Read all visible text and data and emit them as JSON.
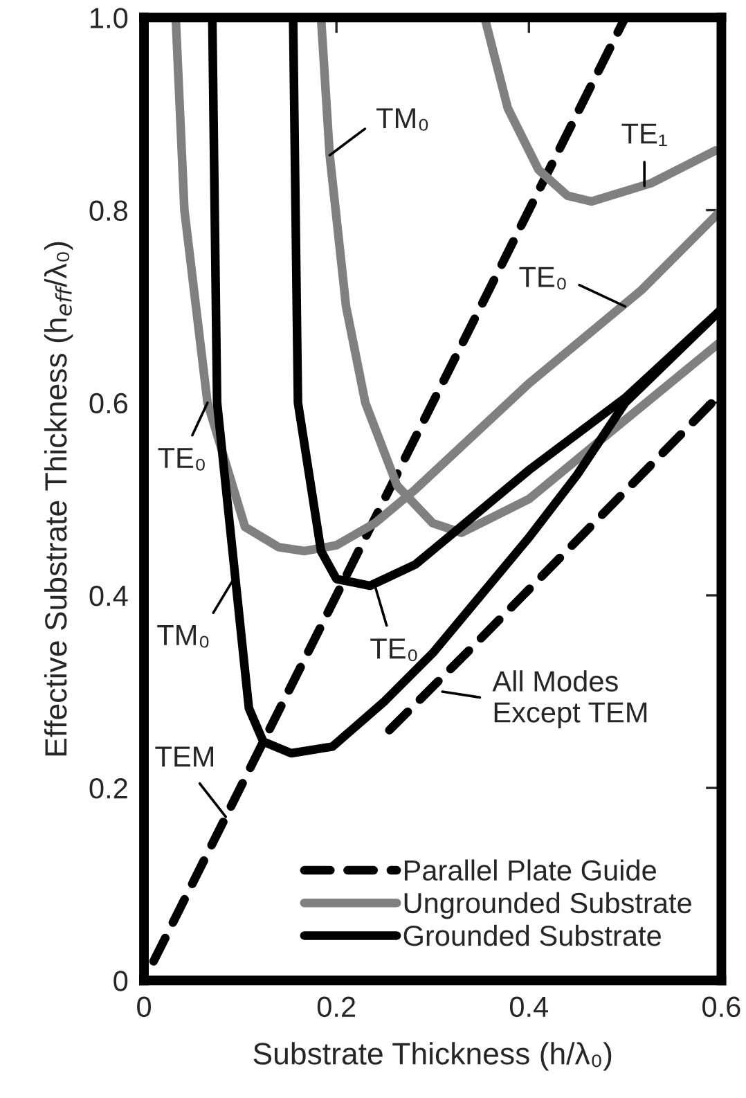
{
  "chart_data": {
    "type": "line",
    "xlabel": "Substrate Thickness (h/λ₀)",
    "ylabel": "Effective Substrate Thickness (h$_{eff}$/λ₀)",
    "xlim": [
      0,
      0.6
    ],
    "ylim": [
      0,
      1.0
    ],
    "xticks": [
      0,
      0.2,
      0.4,
      0.6
    ],
    "yticks": [
      0,
      0.2,
      0.4,
      0.6,
      0.8,
      {
        "value": 1.0,
        "label": "1.0"
      }
    ],
    "grid": false,
    "legend": "bottom right",
    "marker": "none",
    "series": [
      {
        "name": "Parallel Plate Guide",
        "color": "#000000",
        "line_style": "dashed",
        "x": [
          0.01,
          0.5
        ],
        "values": [
          0.02,
          1.0
        ]
      },
      {
        "color": "#000000",
        "line_style": "dashed",
        "x": [
          0.255,
          0.34,
          0.6
        ],
        "values": [
          0.26,
          0.345,
          0.61
        ]
      },
      {
        "name": "Ungrounded Substrate",
        "color": "#808080",
        "line_style": "solid",
        "x": [
          0.033,
          0.042,
          0.066,
          0.105,
          0.14,
          0.167,
          0.2,
          0.24,
          0.282,
          0.4,
          0.517,
          0.6
        ],
        "values": [
          1.0,
          0.8,
          0.6,
          0.471,
          0.45,
          0.446,
          0.452,
          0.475,
          0.51,
          0.62,
          0.717,
          0.8
        ]
      },
      {
        "color": "#808080",
        "line_style": "solid",
        "x": [
          0.184,
          0.193,
          0.21,
          0.23,
          0.263,
          0.3,
          0.33,
          0.4,
          0.473,
          0.6
        ],
        "values": [
          1.0,
          0.857,
          0.7,
          0.6,
          0.514,
          0.475,
          0.465,
          0.5,
          0.56,
          0.664
        ]
      },
      {
        "color": "#808080",
        "line_style": "solid",
        "x": [
          0.354,
          0.378,
          0.41,
          0.44,
          0.465,
          0.527,
          0.594
        ],
        "values": [
          1.0,
          0.906,
          0.842,
          0.815,
          0.809,
          0.828,
          0.862
        ]
      },
      {
        "name": "Grounded Substrate",
        "color": "#000000",
        "line_style": "solid",
        "x": [
          0.071,
          0.076,
          0.092,
          0.109,
          0.124,
          0.153,
          0.196,
          0.25,
          0.3,
          0.35,
          0.4,
          0.45,
          0.5,
          0.6
        ],
        "values": [
          1.0,
          0.6,
          0.446,
          0.283,
          0.248,
          0.236,
          0.243,
          0.29,
          0.34,
          0.4,
          0.46,
          0.525,
          0.6,
          0.697
        ]
      },
      {
        "color": "#000000",
        "line_style": "solid",
        "x": [
          0.155,
          0.16,
          0.184,
          0.2,
          0.235,
          0.282,
          0.311,
          0.4,
          0.5,
          0.6
        ],
        "values": [
          1.0,
          0.6,
          0.446,
          0.417,
          0.41,
          0.432,
          0.456,
          0.53,
          0.605,
          0.697
        ]
      }
    ],
    "annotations": [
      {
        "text": "TM₀",
        "x": 0.193,
        "y": 0.857
      },
      {
        "text": "TE₁",
        "x": 0.52,
        "y": 0.825
      },
      {
        "text": "TE₀",
        "x": 0.5,
        "y": 0.7
      },
      {
        "text": "TE₀",
        "x": 0.066,
        "y": 0.6
      },
      {
        "text": "TM₀",
        "x": 0.095,
        "y": 0.42
      },
      {
        "text": "TE₀",
        "x": 0.24,
        "y": 0.41
      },
      {
        "text": "TEM",
        "x": 0.085,
        "y": 0.17
      },
      {
        "text": "All Modes\nExcept TEM",
        "x": 0.31,
        "y": 0.3
      }
    ]
  }
}
